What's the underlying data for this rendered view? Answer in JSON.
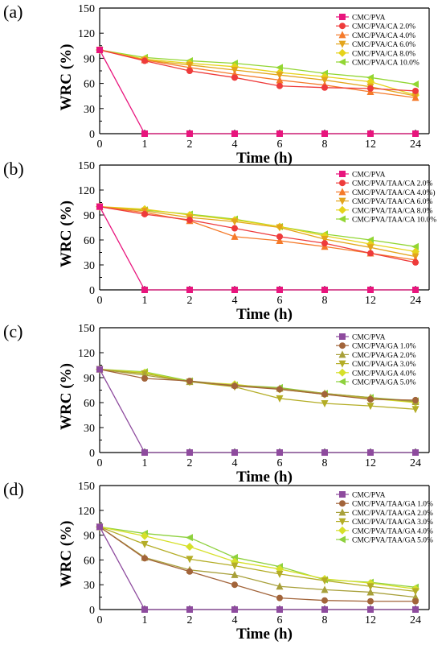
{
  "chart_data": [
    {
      "panel": "(a)",
      "type": "line",
      "categories": [
        "0",
        "1",
        "2",
        "4",
        "6",
        "8",
        "12",
        "24"
      ],
      "xlabel": "Time (h)",
      "ylabel": "WRC (%)",
      "ylim": [
        0,
        150
      ],
      "yticks": [
        0,
        30,
        60,
        90,
        120,
        150
      ],
      "legend_position": "top-right",
      "series": [
        {
          "name": "CMC/PVA",
          "color": "#e8157d",
          "marker": "square",
          "values": [
            100,
            0,
            0,
            0,
            0,
            0,
            0,
            0
          ]
        },
        {
          "name": "CMC/PVA/CA 2.0%",
          "color": "#ee3b3b",
          "marker": "circle",
          "values": [
            100,
            87,
            75,
            67,
            57,
            55,
            54,
            51
          ]
        },
        {
          "name": "CMC/PVA/CA 4.0%",
          "color": "#f57a2a",
          "marker": "triangle-up",
          "values": [
            100,
            88,
            79,
            71,
            64,
            58,
            50,
            43
          ]
        },
        {
          "name": "CMC/PVA/CA 6.0%",
          "color": "#e3a51c",
          "marker": "triangle-down",
          "values": [
            100,
            88,
            82,
            76,
            70,
            64,
            56,
            45
          ]
        },
        {
          "name": "CMC/PVA/CA 8.0%",
          "color": "#e6d31a",
          "marker": "diamond",
          "values": [
            100,
            89,
            84,
            80,
            73,
            68,
            62,
            46
          ]
        },
        {
          "name": "CMC/PVA/CA 10.0%",
          "color": "#92d633",
          "marker": "triangle-left",
          "values": [
            100,
            91,
            87,
            84,
            79,
            72,
            67,
            59
          ]
        }
      ]
    },
    {
      "panel": "(b)",
      "type": "line",
      "categories": [
        "0",
        "1",
        "2",
        "4",
        "6",
        "8",
        "12",
        "24"
      ],
      "xlabel": "Time (h)",
      "ylabel": "WRC (%)",
      "ylim": [
        0,
        150
      ],
      "yticks": [
        0,
        30,
        60,
        90,
        120,
        150
      ],
      "legend_position": "top-right",
      "series": [
        {
          "name": "CMC/PVA",
          "color": "#e8157d",
          "marker": "square",
          "values": [
            100,
            0,
            0,
            0,
            0,
            0,
            0,
            0
          ]
        },
        {
          "name": "CMC/PVA/TAA/CA 2.0%",
          "color": "#ee3b3b",
          "marker": "circle",
          "values": [
            100,
            91,
            84,
            74,
            64,
            56,
            44,
            33
          ]
        },
        {
          "name": "CMC/PVA/TAA/CA 4.0%)",
          "color": "#f57a2a",
          "marker": "triangle-up",
          "values": [
            100,
            93,
            83,
            64,
            59,
            52,
            44,
            36
          ]
        },
        {
          "name": "CMC/PVA/TAA/CA 6.0%",
          "color": "#e3a51c",
          "marker": "triangle-down",
          "values": [
            100,
            95,
            87,
            82,
            75,
            61,
            51,
            40
          ]
        },
        {
          "name": "CMC/PVA/TAA/CA 8.0%",
          "color": "#e6d31a",
          "marker": "diamond",
          "values": [
            100,
            97,
            90,
            84,
            76,
            65,
            55,
            46
          ]
        },
        {
          "name": "CMC/PVA/TAA/CA 10.0%",
          "color": "#92d633",
          "marker": "triangle-left",
          "values": [
            100,
            96,
            91,
            85,
            76,
            67,
            60,
            52
          ]
        }
      ]
    },
    {
      "panel": "(c)",
      "type": "line",
      "categories": [
        "0",
        "1",
        "2",
        "4",
        "6",
        "8",
        "12",
        "24"
      ],
      "xlabel": "Time (h)",
      "ylabel": "WRC (%)",
      "ylim": [
        0,
        150
      ],
      "yticks": [
        0,
        30,
        60,
        90,
        120,
        150
      ],
      "legend_position": "top-right",
      "series": [
        {
          "name": "CMC/PVA",
          "color": "#8e4b9e",
          "marker": "square",
          "values": [
            100,
            0,
            0,
            0,
            0,
            0,
            0,
            0
          ]
        },
        {
          "name": "CMC/PVA/GA 1.0%",
          "color": "#a2643a",
          "marker": "circle",
          "values": [
            100,
            89,
            86,
            80,
            76,
            70,
            64,
            63
          ]
        },
        {
          "name": "CMC/PVA/GA 2.0%",
          "color": "#a8a03a",
          "marker": "triangle-up",
          "values": [
            100,
            93,
            85,
            81,
            77,
            71,
            66,
            61
          ]
        },
        {
          "name": "CMC/PVA/GA 3.0%",
          "color": "#b4ad26",
          "marker": "triangle-down",
          "values": [
            100,
            95,
            85,
            79,
            65,
            59,
            56,
            52
          ]
        },
        {
          "name": "CMC/PVA/GA 4.0%",
          "color": "#d6e02a",
          "marker": "diamond",
          "values": [
            100,
            96,
            85,
            82,
            76,
            70,
            65,
            60
          ]
        },
        {
          "name": "CMC/PVA/GA 5.0%",
          "color": "#8ed13e",
          "marker": "triangle-left",
          "values": [
            100,
            97,
            86,
            81,
            78,
            71,
            66,
            62
          ]
        }
      ]
    },
    {
      "panel": "(d)",
      "type": "line",
      "categories": [
        "0",
        "1",
        "2",
        "4",
        "6",
        "8",
        "12",
        "24"
      ],
      "xlabel": "Time (h)",
      "ylabel": "WRC (%)",
      "ylim": [
        0,
        150
      ],
      "yticks": [
        0,
        30,
        60,
        90,
        120,
        150
      ],
      "legend_position": "top-right",
      "series": [
        {
          "name": "CMC/PVA",
          "color": "#8e4b9e",
          "marker": "square",
          "values": [
            100,
            0,
            0,
            0,
            0,
            0,
            0,
            0
          ]
        },
        {
          "name": "CMC/PVA/TAA/GA 1.0%",
          "color": "#a2643a",
          "marker": "circle",
          "values": [
            100,
            62,
            46,
            30,
            14,
            11,
            10,
            10
          ]
        },
        {
          "name": "CMC/PVA/TAA/GA 2.0%",
          "color": "#a8a03a",
          "marker": "triangle-up",
          "values": [
            100,
            63,
            48,
            42,
            28,
            24,
            21,
            15
          ]
        },
        {
          "name": "CMC/PVA/TAA/GA 3.0%",
          "color": "#b4ad26",
          "marker": "triangle-down",
          "values": [
            100,
            79,
            61,
            53,
            43,
            35,
            28,
            22
          ]
        },
        {
          "name": "CMC/PVA/TAA/GA 4.0%",
          "color": "#d6e02a",
          "marker": "diamond",
          "values": [
            100,
            89,
            76,
            58,
            49,
            37,
            32,
            25
          ]
        },
        {
          "name": "CMC/PVA/TAA/GA 5.0%",
          "color": "#8ed13e",
          "marker": "triangle-left",
          "values": [
            100,
            92,
            87,
            63,
            52,
            36,
            33,
            27
          ]
        }
      ]
    }
  ]
}
